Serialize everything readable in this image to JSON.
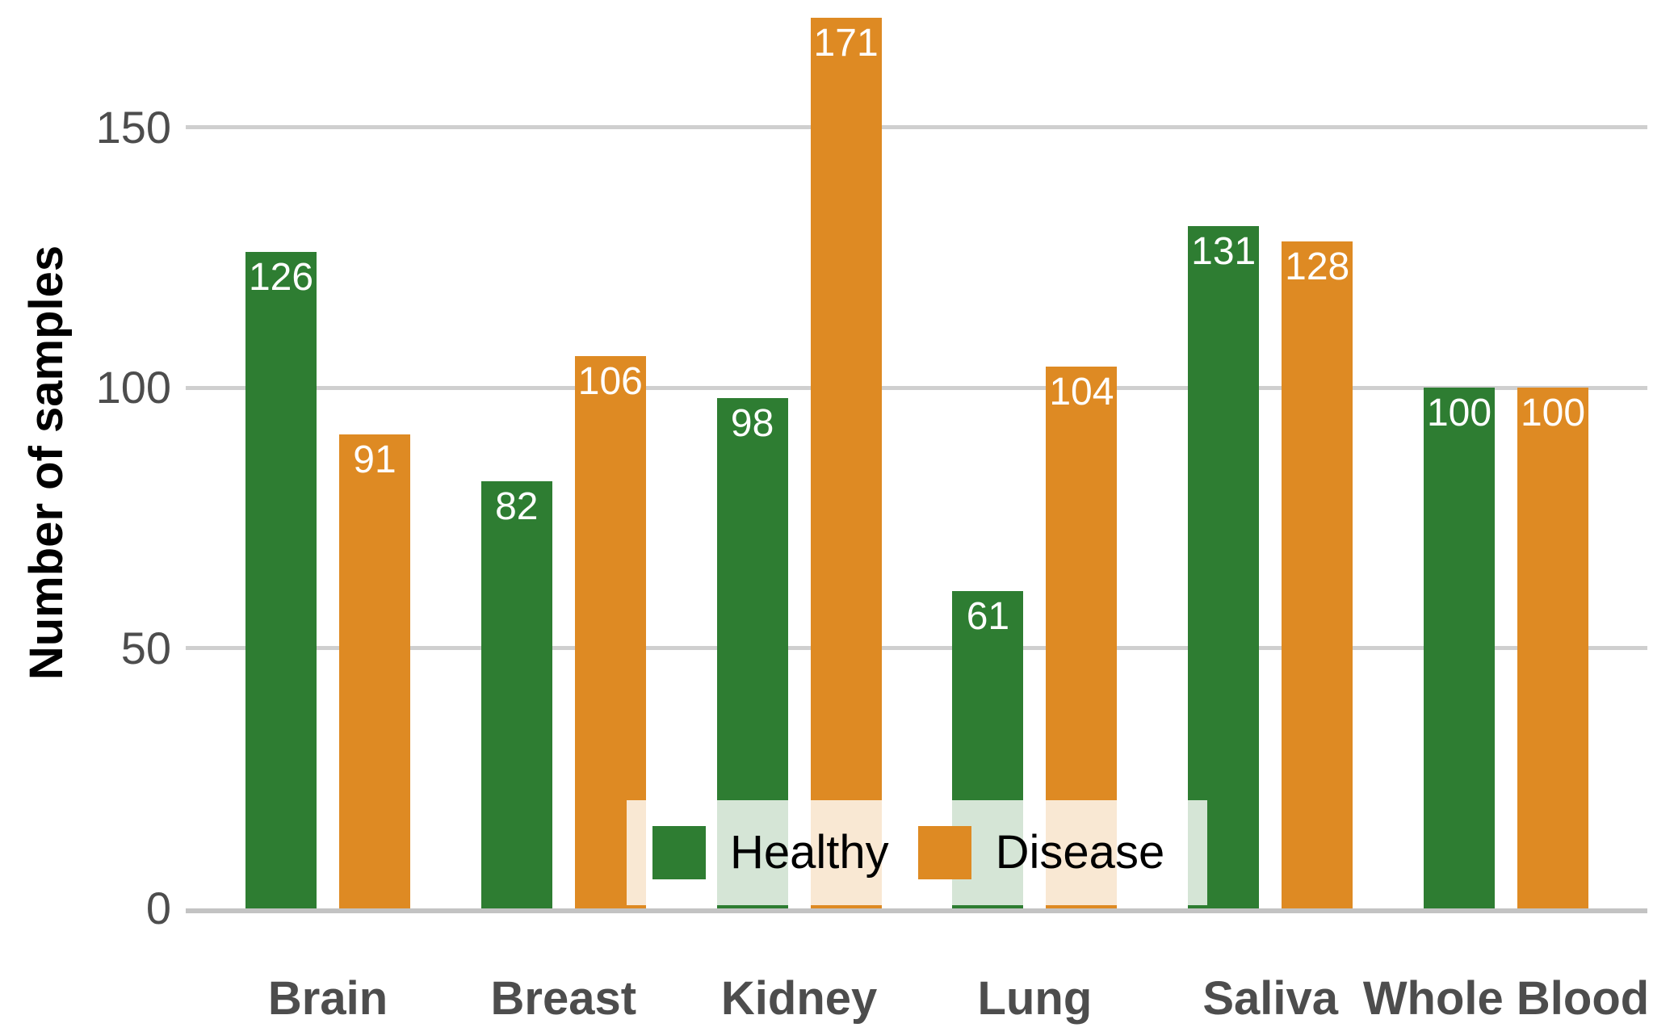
{
  "chart_data": {
    "type": "bar",
    "title": "",
    "xlabel": "",
    "ylabel": "Number of samples",
    "categories": [
      "Brain",
      "Breast",
      "Kidney",
      "Lung",
      "Saliva",
      "Whole Blood"
    ],
    "series": [
      {
        "name": "Healthy",
        "color": "#2e7d32",
        "values": [
          126,
          82,
          98,
          61,
          131,
          100
        ]
      },
      {
        "name": "Disease",
        "color": "#de8a23",
        "values": [
          91,
          106,
          171,
          104,
          128,
          100
        ]
      }
    ],
    "bar_value_labels": [
      "126",
      "91",
      "82",
      "106",
      "98",
      "171",
      "61",
      "104",
      "131",
      "128",
      "100",
      "100"
    ],
    "yticks": [
      "0",
      "50",
      "100",
      "150"
    ],
    "ylim": [
      0,
      175
    ],
    "grid": "horizontal",
    "legend_position": "bottom-center-inside",
    "value_label_color": "#ffffff",
    "axis_text_color": "#4d4d4d",
    "grid_color": "#cfcfcf",
    "axis_line_color": "#c3c3c3"
  }
}
